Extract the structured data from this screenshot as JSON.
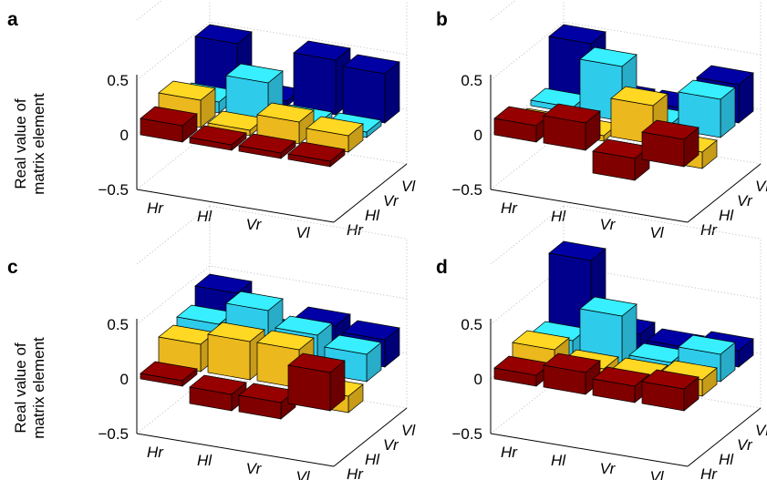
{
  "figure": {
    "ylabel_line1": "Real value of",
    "ylabel_line2": "matrix element",
    "ticks": [
      "0.5",
      "0",
      "−0.5"
    ],
    "x_categories": [
      "Hr",
      "Hl",
      "Vr",
      "Vl"
    ],
    "depth_categories": [
      "Hr",
      "Hl",
      "Vr",
      "Vl"
    ]
  },
  "chart_data": [
    {
      "type": "bar3d",
      "panel": "a",
      "ylabel": "Real value of matrix element",
      "zlim": [
        -0.5,
        0.5
      ],
      "row_labels": [
        "Hr",
        "Hl",
        "Vr",
        "Vl"
      ],
      "col_labels": [
        "Hr",
        "Hl",
        "Vr",
        "Vl"
      ],
      "colors": [
        "#8b0000",
        "#ffc820",
        "#33ddff",
        "#000099"
      ],
      "grid": true,
      "values": [
        [
          0.15,
          0.05,
          0.05,
          0.05
        ],
        [
          0.25,
          0.05,
          0.2,
          0.15
        ],
        [
          0.1,
          0.35,
          0.05,
          0.05
        ],
        [
          0.5,
          0.05,
          0.5,
          0.45
        ]
      ]
    },
    {
      "type": "bar3d",
      "panel": "b",
      "zlim": [
        -0.5,
        0.5
      ],
      "row_labels": [
        "Hr",
        "Hl",
        "Vr",
        "Vl"
      ],
      "col_labels": [
        "Hr",
        "Hl",
        "Vr",
        "Vl"
      ],
      "colors": [
        "#8b0000",
        "#ffc820",
        "#33ddff",
        "#000099"
      ],
      "grid": true,
      "values": [
        [
          0.15,
          0.25,
          -0.2,
          0.25
        ],
        [
          -0.1,
          -0.05,
          0.35,
          -0.15
        ],
        [
          0.05,
          0.5,
          0.05,
          0.35
        ],
        [
          0.5,
          0.05,
          0.05,
          0.35
        ]
      ]
    },
    {
      "type": "bar3d",
      "panel": "c",
      "ylabel": "Real value of matrix element",
      "zlim": [
        -0.5,
        0.5
      ],
      "row_labels": [
        "Hr",
        "Hl",
        "Vr",
        "Vl"
      ],
      "col_labels": [
        "Hr",
        "Hl",
        "Vr",
        "Vl"
      ],
      "colors": [
        "#8b0000",
        "#ffc820",
        "#33ddff",
        "#000099"
      ],
      "grid": true,
      "values": [
        [
          0.05,
          -0.15,
          -0.15,
          0.35
        ],
        [
          0.25,
          0.35,
          0.35,
          -0.15
        ],
        [
          0.3,
          0.5,
          0.35,
          0.25
        ],
        [
          0.45,
          0.15,
          0.3,
          0.25
        ]
      ]
    },
    {
      "type": "bar3d",
      "panel": "d",
      "zlim": [
        -0.5,
        0.5
      ],
      "row_labels": [
        "Hr",
        "Hl",
        "Vr",
        "Vl"
      ],
      "col_labels": [
        "Hr",
        "Hl",
        "Vr",
        "Vl"
      ],
      "colors": [
        "#8b0000",
        "#ffc820",
        "#33ddff",
        "#000099"
      ],
      "grid": true,
      "values": [
        [
          0.1,
          0.2,
          0.15,
          0.2
        ],
        [
          0.2,
          0.1,
          0.1,
          0.15
        ],
        [
          0.15,
          0.45,
          0.1,
          0.25
        ],
        [
          0.75,
          0.15,
          0.1,
          0.15
        ]
      ]
    }
  ]
}
